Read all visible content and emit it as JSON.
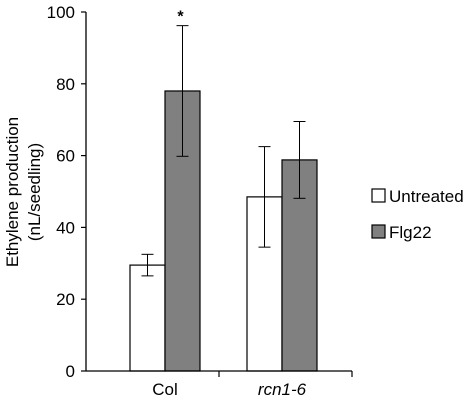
{
  "chart_data": {
    "type": "bar",
    "categories": [
      "Col",
      "rcn1-6"
    ],
    "italic_categories": [
      false,
      true
    ],
    "series": [
      {
        "name": "Untreated",
        "values": [
          29.5,
          48.5
        ],
        "errors": [
          3.0,
          14.0
        ],
        "color": "#ffffff"
      },
      {
        "name": "Flg22",
        "values": [
          78.0,
          58.8
        ],
        "errors": [
          18.2,
          10.7
        ],
        "color": "#808080"
      }
    ],
    "ylabel": [
      "Ethylene production",
      "(nL/seedling)"
    ],
    "ylim": [
      0,
      100
    ],
    "yticks": [
      "0",
      "20",
      "40",
      "60",
      "80",
      "100"
    ],
    "grid": false,
    "legend_position": "right",
    "annotations": [
      {
        "text": "*",
        "category": "Col",
        "series": "Flg22"
      }
    ]
  }
}
